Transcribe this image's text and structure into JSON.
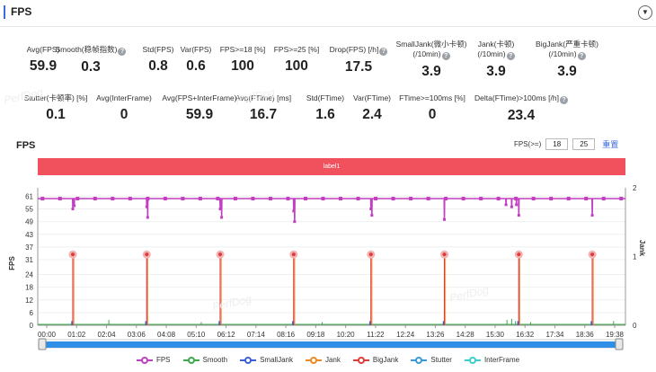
{
  "header": {
    "title": "FPS"
  },
  "metrics_row1": [
    {
      "label": "Avg(FPS)",
      "value": "59.9",
      "help": false
    },
    {
      "label": "Smooth(稳帧指数)",
      "value": "0.3",
      "help": true
    },
    {
      "label": "Std(FPS)",
      "value": "0.8",
      "help": false
    },
    {
      "label": "Var(FPS)",
      "value": "0.6",
      "help": false
    },
    {
      "label": "FPS>=18 [%]",
      "value": "100",
      "help": false
    },
    {
      "label": "FPS>=25 [%]",
      "value": "100",
      "help": false
    },
    {
      "label": "Drop(FPS) [/h]",
      "value": "17.5",
      "help": true
    },
    {
      "label": "SmallJank(微小卡顿)",
      "label2": "(/10min)",
      "value": "3.9",
      "help": true
    },
    {
      "label": "Jank(卡顿)",
      "label2": "(/10min)",
      "value": "3.9",
      "help": true
    },
    {
      "label": "BigJank(严重卡顿)",
      "label2": "(/10min)",
      "value": "3.9",
      "help": true
    }
  ],
  "metrics_row2": [
    {
      "label": "Stutter(卡顿率) [%]",
      "value": "0.1",
      "help": false
    },
    {
      "label": "Avg(InterFrame)",
      "value": "0",
      "help": false
    },
    {
      "label": "Avg(FPS+InterFrame)",
      "value": "59.9",
      "help": false
    },
    {
      "label": "Avg(FTime) [ms]",
      "value": "16.7",
      "help": false
    },
    {
      "label": "Std(FTime)",
      "value": "1.6",
      "help": false
    },
    {
      "label": "Var(FTime)",
      "value": "2.4",
      "help": false
    },
    {
      "label": "FTime>=100ms [%]",
      "value": "0",
      "help": false
    },
    {
      "label": "Delta(FTime)>100ms [/h]",
      "value": "23.4",
      "help": true
    }
  ],
  "watermark": "PerfDog",
  "fps_filter": {
    "label": "FPS(>=)",
    "value1": "18",
    "value2": "25",
    "reset_label": "重置"
  },
  "chart_data": {
    "type": "line",
    "title": "FPS",
    "band_label": "label1",
    "ylabel": "FPS",
    "y2label": "Jank",
    "ylim": [
      0,
      65
    ],
    "y2lim": [
      0,
      2
    ],
    "yticks": [
      0,
      6,
      12,
      18,
      24,
      31,
      37,
      43,
      49,
      55,
      61
    ],
    "y2ticks": [
      0,
      1,
      2
    ],
    "xticks": [
      "00:00",
      "01:02",
      "02:04",
      "03:06",
      "04:08",
      "05:10",
      "06:12",
      "07:14",
      "08:16",
      "09:18",
      "10:20",
      "11:22",
      "12:24",
      "13:26",
      "14:28",
      "15:30",
      "16:32",
      "17:34",
      "18:36",
      "19:38"
    ],
    "xlim_seconds": [
      0,
      1240
    ],
    "fps_baseline": 59.9,
    "fps_dips": [
      {
        "t": 74,
        "v": 55
      },
      {
        "t": 77,
        "v": 56.5
      },
      {
        "t": 230,
        "v": 56
      },
      {
        "t": 232,
        "v": 51
      },
      {
        "t": 385,
        "v": 55
      },
      {
        "t": 388,
        "v": 51
      },
      {
        "t": 540,
        "v": 54
      },
      {
        "t": 542,
        "v": 49
      },
      {
        "t": 703,
        "v": 55
      },
      {
        "t": 705,
        "v": 52
      },
      {
        "t": 858,
        "v": 50
      },
      {
        "t": 1015,
        "v": 52
      },
      {
        "t": 1170,
        "v": 52
      },
      {
        "t": 988,
        "v": 57
      },
      {
        "t": 1000,
        "v": 56
      },
      {
        "t": 1010,
        "v": 57
      }
    ],
    "bigjank_events": [
      74,
      230,
      385,
      540,
      703,
      858,
      1015,
      1170
    ],
    "bigjank_peak": 33.5,
    "series": [
      {
        "name": "FPS",
        "color": "#c23fc2"
      },
      {
        "name": "Smooth",
        "color": "#3aaa4a"
      },
      {
        "name": "SmallJank",
        "color": "#3a5fd8"
      },
      {
        "name": "Jank",
        "color": "#f08a24"
      },
      {
        "name": "BigJank",
        "color": "#e03a3a"
      },
      {
        "name": "Stutter",
        "color": "#3a9ae0"
      },
      {
        "name": "InterFrame",
        "color": "#3ad0c8"
      }
    ]
  }
}
